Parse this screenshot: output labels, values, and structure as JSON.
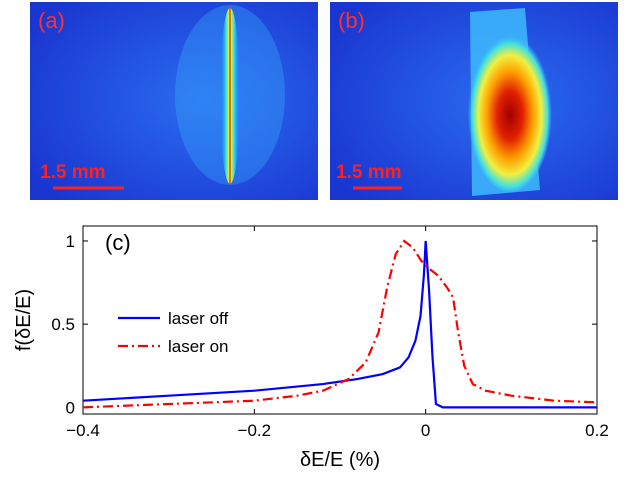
{
  "panels": [
    {
      "label": "(a)",
      "scale_bar": "1.5 mm"
    },
    {
      "label": "(b)",
      "scale_bar": "1.5 mm"
    }
  ],
  "chart_data": {
    "type": "line",
    "annotation": "(c)",
    "x_label": "δE/E (%)",
    "y_label": "f(δE/E)",
    "xlim": [
      -0.4,
      0.2
    ],
    "ylim": [
      -0.04,
      1.09
    ],
    "xticks": [
      {
        "value": -0.4,
        "label": "−0.4"
      },
      {
        "value": -0.2,
        "label": "−0.2"
      },
      0,
      0.2
    ],
    "yticks": [
      0,
      0.5,
      1
    ],
    "legend": "center-left",
    "series": [
      {
        "name": "laser off",
        "color": "#0000ff",
        "dash": "solid",
        "x": [
          -0.4,
          -0.3,
          -0.2,
          -0.12,
          -0.08,
          -0.05,
          -0.03,
          -0.02,
          -0.012,
          -0.006,
          -0.002,
          0,
          0.004,
          0.008,
          0.012,
          0.02,
          0.1,
          0.2
        ],
        "values": [
          0.04,
          0.07,
          0.1,
          0.14,
          0.17,
          0.2,
          0.24,
          0.3,
          0.4,
          0.55,
          0.8,
          1.0,
          0.7,
          0.3,
          0.02,
          0.0,
          0.0,
          0.0
        ]
      },
      {
        "name": "laser on",
        "color": "#ff0000",
        "dash": "dashdot",
        "x": [
          -0.4,
          -0.3,
          -0.2,
          -0.15,
          -0.12,
          -0.09,
          -0.07,
          -0.055,
          -0.045,
          -0.035,
          -0.025,
          -0.015,
          -0.005,
          0.005,
          0.015,
          0.025,
          0.032,
          0.038,
          0.045,
          0.055,
          0.07,
          0.1,
          0.15,
          0.2
        ],
        "values": [
          0.0,
          0.02,
          0.04,
          0.07,
          0.1,
          0.17,
          0.27,
          0.45,
          0.72,
          0.92,
          1.0,
          0.96,
          0.88,
          0.83,
          0.79,
          0.72,
          0.66,
          0.45,
          0.25,
          0.14,
          0.1,
          0.07,
          0.04,
          0.03
        ]
      }
    ]
  }
}
